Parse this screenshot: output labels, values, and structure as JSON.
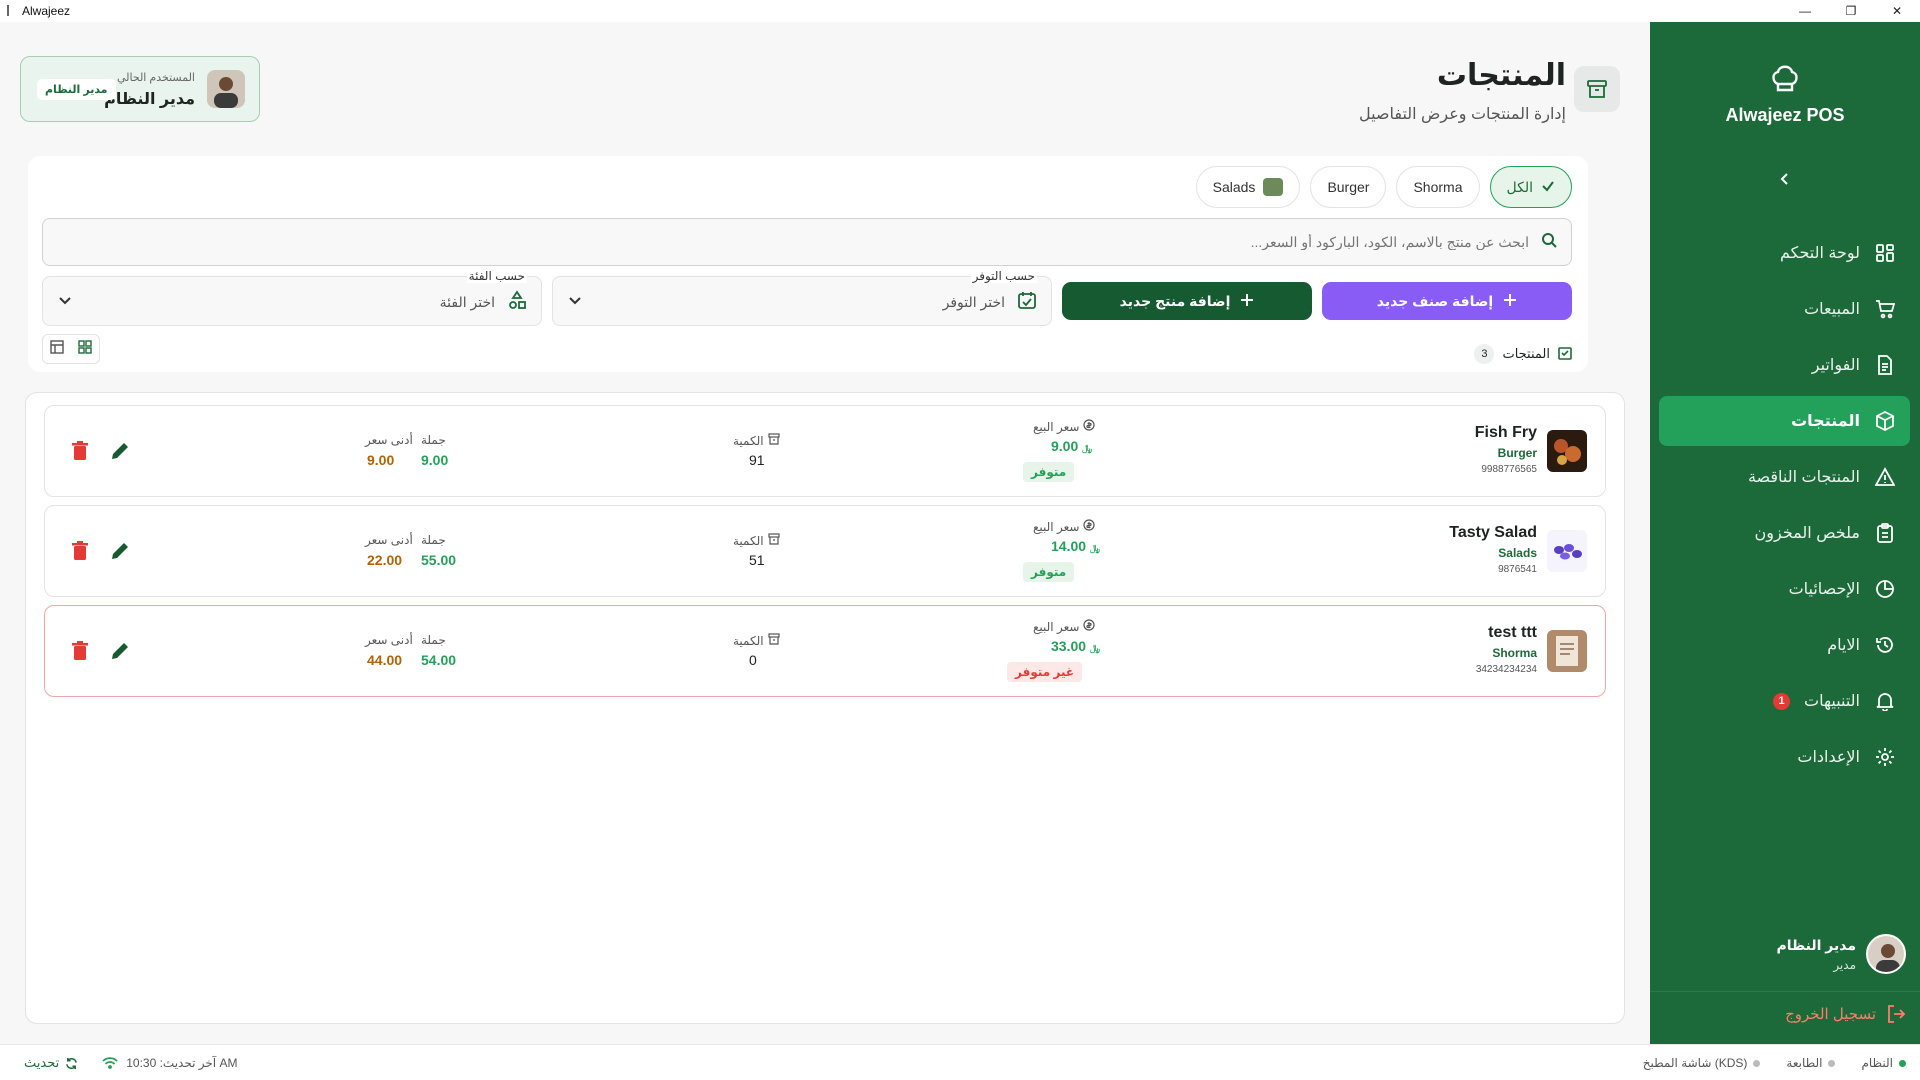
{
  "window": {
    "title": "Alwajeez",
    "minimize": "—",
    "restore": "❐",
    "close": "✕"
  },
  "sidebar": {
    "brand": "Alwajeez POS",
    "items": [
      {
        "label": "لوحة التحكم",
        "icon": "dashboard-grid-icon"
      },
      {
        "label": "المبيعات",
        "icon": "cart-icon"
      },
      {
        "label": "الفواتير",
        "icon": "invoice-icon"
      },
      {
        "label": "المنتجات",
        "icon": "box-icon",
        "active": true
      },
      {
        "label": "المنتجات الناقصة",
        "icon": "warning-icon"
      },
      {
        "label": "ملخص المخزون",
        "icon": "clipboard-icon"
      },
      {
        "label": "الإحصائيات",
        "icon": "pie-chart-icon"
      },
      {
        "label": "الايام",
        "icon": "history-icon"
      },
      {
        "label": "التنبيهات",
        "icon": "bell-icon",
        "badge": "1"
      },
      {
        "label": "الإعدادات",
        "icon": "gear-icon"
      }
    ],
    "user": {
      "name": "مدير النظام",
      "role": "مدير"
    },
    "logout": "تسجيل الخروج"
  },
  "header": {
    "title": "المنتجات",
    "subtitle": "إدارة المنتجات وعرض التفاصيل"
  },
  "current_user": {
    "label": "المستخدم الحالي",
    "name": "مدير النظام",
    "role_chip": "مدير النظام"
  },
  "filters": {
    "tabs": [
      "الكل",
      "Shorma",
      "Burger",
      "Salads"
    ],
    "search_placeholder": "ابحث عن منتج بالاسم، الكود، الباركود أو السعر...",
    "add_category": "إضافة صنف جديد",
    "add_product": "إضافة منتج جديد",
    "availability": {
      "label": "حسب التوفر",
      "value": "اختر التوفر"
    },
    "category": {
      "label": "حسب الفئة",
      "value": "اختر الفئة"
    },
    "count_label": "المنتجات",
    "count": "3"
  },
  "labels": {
    "sale_price": "سعر البيع",
    "quantity": "الكمية",
    "wholesale": "جملة",
    "min_price": "أدنى سعر",
    "currency": "﷼"
  },
  "products": [
    {
      "name": "Fish Fry",
      "category": "Burger",
      "code": "9988776565",
      "price": "9.00",
      "status": "متوفر",
      "quantity": "91",
      "wholesale": "9.00",
      "min_price": "9.00",
      "available": true
    },
    {
      "name": "Tasty Salad",
      "category": "Salads",
      "code": "9876541",
      "price": "14.00",
      "status": "متوفر",
      "quantity": "51",
      "wholesale": "55.00",
      "min_price": "22.00",
      "available": true
    },
    {
      "name": "test ttt",
      "category": "Shorma",
      "code": "34234234234",
      "price": "33.00",
      "status": "غير متوفر",
      "quantity": "0",
      "wholesale": "54.00",
      "min_price": "44.00",
      "available": false
    }
  ],
  "statusbar": {
    "system": "النظام",
    "printer": "الطابعة",
    "kds": "شاشة المطبخ (KDS)",
    "last_update": "آخر تحديث: 10:30 AM",
    "refresh": "تحديث"
  },
  "colors": {
    "sidebar": "#1c6a3a",
    "accent": "#23a05a",
    "purple": "#8a5cf6",
    "danger": "#e53935"
  }
}
